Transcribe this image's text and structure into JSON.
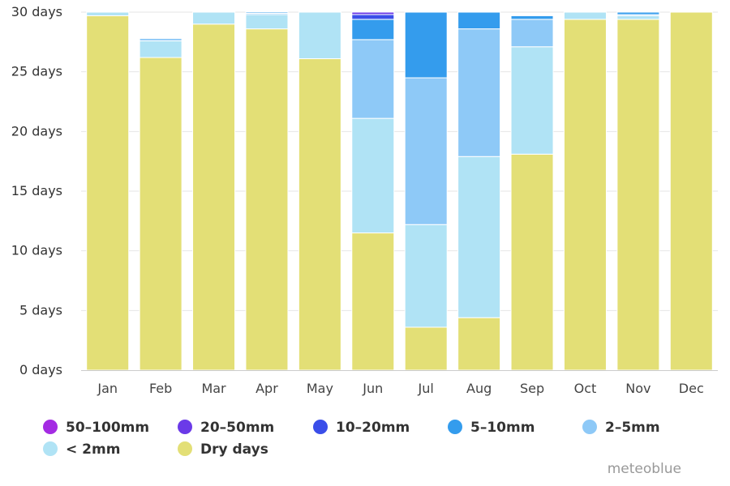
{
  "chart_data": {
    "type": "bar",
    "stacked": true,
    "categories": [
      "Jan",
      "Feb",
      "Mar",
      "Apr",
      "May",
      "Jun",
      "Jul",
      "Aug",
      "Sep",
      "Oct",
      "Nov",
      "Dec"
    ],
    "ylim": [
      0,
      30
    ],
    "yticks": [
      0,
      5,
      10,
      15,
      20,
      25,
      30
    ],
    "ytick_labels": [
      "0 days",
      "5 days",
      "10 days",
      "15 days",
      "20 days",
      "25 days",
      "30 days"
    ],
    "grid": "horizontal",
    "legend_position": "bottom-left",
    "series": [
      {
        "name": "Dry days",
        "color": "#e3df76",
        "values": [
          29.7,
          26.2,
          29.0,
          28.6,
          26.1,
          11.5,
          3.6,
          4.4,
          18.1,
          29.4,
          29.4,
          30.0
        ]
      },
      {
        "name": "< 2mm",
        "color": "#b0e3f5",
        "values": [
          0.3,
          1.4,
          1.0,
          1.2,
          3.9,
          9.6,
          8.6,
          13.5,
          9.0,
          0.6,
          0.3,
          0.0
        ]
      },
      {
        "name": "2-5mm",
        "color": "#8ec9f7",
        "values": [
          0.0,
          0.2,
          0.0,
          0.1,
          0.0,
          6.6,
          12.3,
          10.7,
          2.3,
          0.0,
          0.1,
          0.0
        ]
      },
      {
        "name": "5-10mm",
        "color": "#349ced",
        "values": [
          0.0,
          0.0,
          0.0,
          0.1,
          0.0,
          1.7,
          5.5,
          1.4,
          0.3,
          0.0,
          0.2,
          0.0
        ]
      },
      {
        "name": "10-20mm",
        "color": "#3a4ee9",
        "values": [
          0.0,
          0.0,
          0.0,
          0.0,
          0.0,
          0.4,
          0.0,
          0.0,
          0.0,
          0.0,
          0.0,
          0.0
        ]
      },
      {
        "name": "20-50mm",
        "color": "#6b3ae8",
        "values": [
          0.0,
          0.0,
          0.0,
          0.0,
          0.0,
          0.2,
          0.0,
          0.0,
          0.0,
          0.0,
          0.0,
          0.0
        ]
      },
      {
        "name": "50-100mm",
        "color": "#a42be3",
        "values": [
          0.0,
          0.0,
          0.0,
          0.0,
          0.0,
          0.0,
          0.0,
          0.0,
          0.0,
          0.0,
          0.0,
          0.0
        ]
      }
    ],
    "legend_order": [
      "50-100mm",
      "20-50mm",
      "10-20mm",
      "5-10mm",
      "2-5mm",
      "< 2mm",
      "Dry days"
    ]
  },
  "legend": {
    "items": [
      {
        "label": "50–100mm",
        "color": "#a42be3"
      },
      {
        "label": "20–50mm",
        "color": "#6b3ae8"
      },
      {
        "label": "10–20mm",
        "color": "#3a4ee9"
      },
      {
        "label": "5–10mm",
        "color": "#349ced"
      },
      {
        "label": "2–5mm",
        "color": "#8ec9f7"
      },
      {
        "label": "< 2mm",
        "color": "#b0e3f5"
      },
      {
        "label": "Dry days",
        "color": "#e3df76"
      }
    ]
  },
  "credit": "meteoblue"
}
